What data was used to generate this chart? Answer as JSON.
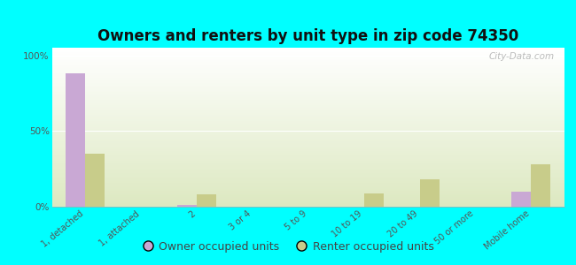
{
  "title": "Owners and renters by unit type in zip code 74350",
  "categories": [
    "1, detached",
    "1, attached",
    "2",
    "3 or 4",
    "5 to 9",
    "10 to 19",
    "20 to 49",
    "50 or more",
    "Mobile home"
  ],
  "owner_values": [
    88,
    0,
    1,
    0,
    0,
    0,
    0,
    0,
    10
  ],
  "renter_values": [
    35,
    0,
    8,
    0,
    0,
    9,
    18,
    0,
    28
  ],
  "owner_color": "#c9a8d4",
  "renter_color": "#c8cc8a",
  "background_color": "#00ffff",
  "plot_bg_top": "#ffffff",
  "plot_bg_bottom": "#dce8c0",
  "yticks": [
    0,
    50,
    100
  ],
  "ylim": [
    0,
    105
  ],
  "bar_width": 0.35,
  "legend_owner": "Owner occupied units",
  "legend_renter": "Renter occupied units",
  "watermark": "City-Data.com",
  "title_fontsize": 12,
  "tick_label_fontsize": 7,
  "legend_fontsize": 9
}
